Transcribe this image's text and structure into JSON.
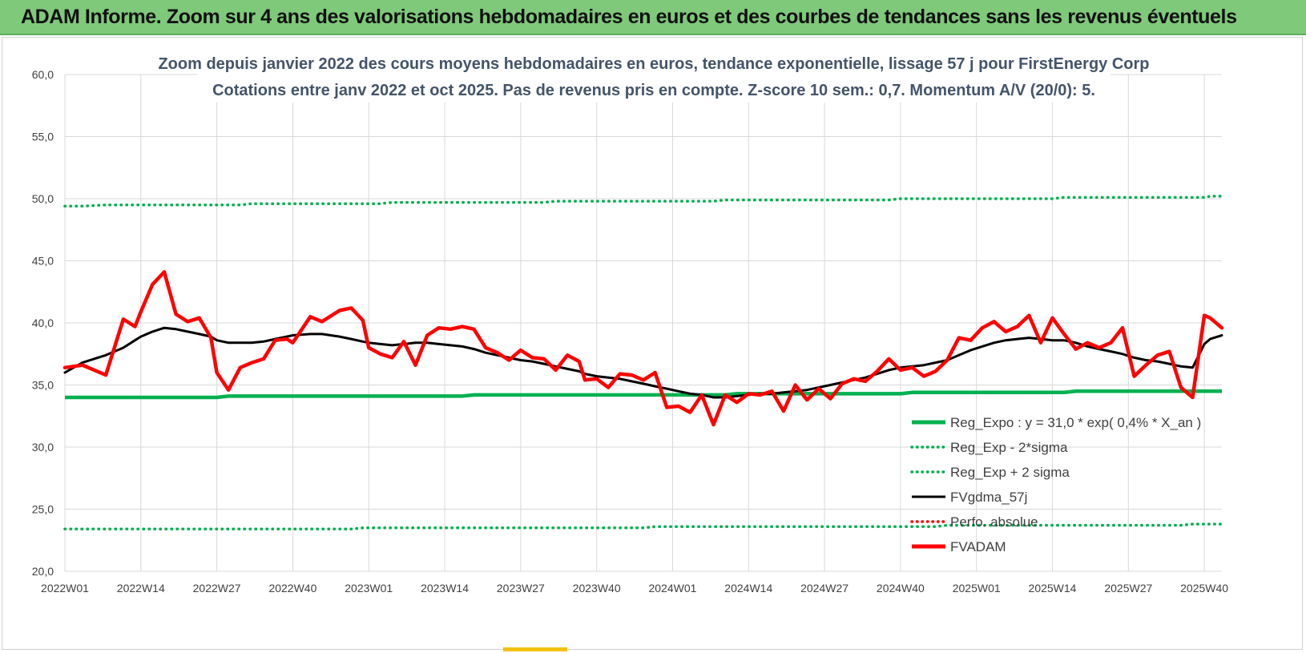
{
  "banner": {
    "title": "ADAM Informe. Zoom sur 4 ans des valorisations hebdomadaires en euros et des courbes de tendances sans les revenus éventuels"
  },
  "colors": {
    "banner_bg": "#7fc97a",
    "reg_expo": "#00b050",
    "fv_gdma": "#000000",
    "fvadam": "#ff0000",
    "perfo": "#ff0000",
    "grid": "#d9d9d9"
  },
  "chart_data": {
    "type": "line",
    "title": "Zoom depuis janvier 2022 des cours moyens hebdomadaires en euros, tendance exponentielle, lissage 57 j pour FirstEnergy Corp",
    "subtitle": "Cotations entre janv 2022 et oct 2025. Pas de revenus pris en compte. Z-score 10 sem.: 0,7. Momentum A/V (20/0): 5.",
    "xlabel": "",
    "ylabel": "",
    "ylim": [
      20,
      60
    ],
    "yticks": [
      "20,0",
      "25,0",
      "30,0",
      "35,0",
      "40,0",
      "45,0",
      "50,0",
      "55,0",
      "60,0"
    ],
    "xticks": [
      "2022W01",
      "2022W14",
      "2022W27",
      "2022W40",
      "2023W01",
      "2023W14",
      "2023W27",
      "2023W40",
      "2024W01",
      "2024W14",
      "2024W27",
      "2024W40",
      "2025W01",
      "2025W14",
      "2025W27",
      "2025W40"
    ],
    "grid": true,
    "legend_position": "bottom-right",
    "legend": [
      {
        "label": "Reg_Expo : y = 31,0 * exp( 0,4% * X_an )",
        "style": "solid-thick",
        "color": "#00b050"
      },
      {
        "label": "Reg_Exp - 2*sigma",
        "style": "dotted",
        "color": "#00b050"
      },
      {
        "label": "Reg_Exp + 2 sigma",
        "style": "dotted",
        "color": "#00b050"
      },
      {
        "label": "FVgdma_57j",
        "style": "solid",
        "color": "#000000"
      },
      {
        "label": "Perfo. absolue",
        "style": "dotted",
        "color": "#ff0000"
      },
      {
        "label": "FVADAM",
        "style": "solid-thick",
        "color": "#ff0000"
      }
    ],
    "x": [
      1,
      4,
      8,
      11,
      13,
      14,
      16,
      18,
      20,
      22,
      24,
      26,
      27,
      29,
      31,
      33,
      35,
      37,
      39,
      40,
      43,
      45,
      48,
      50,
      52,
      53,
      55,
      57,
      59,
      61,
      63,
      65,
      67,
      69,
      71,
      73,
      75,
      77,
      79,
      81,
      83,
      85,
      87,
      89,
      90,
      92,
      94,
      96,
      98,
      100,
      102,
      104,
      106,
      108,
      110,
      112,
      114,
      116,
      118,
      120,
      122,
      124,
      126,
      128,
      130,
      132,
      134,
      136,
      138,
      140,
      142,
      144,
      146,
      148,
      150,
      152,
      154,
      156,
      158,
      160,
      162,
      164,
      166,
      168,
      170,
      172,
      174,
      176,
      178,
      180,
      182,
      184,
      186,
      188,
      190,
      192,
      194,
      196,
      197,
      199
    ],
    "series": [
      {
        "name": "FVADAM",
        "values": [
          36.4,
          36.6,
          35.8,
          40.3,
          39.7,
          40.9,
          43.1,
          44.1,
          40.7,
          40.1,
          40.4,
          38.8,
          36.0,
          34.6,
          36.4,
          36.8,
          37.1,
          38.6,
          38.7,
          38.4,
          40.5,
          40.1,
          41.0,
          41.2,
          40.2,
          38.0,
          37.5,
          37.2,
          38.5,
          36.6,
          39.0,
          39.6,
          39.5,
          39.7,
          39.5,
          38.0,
          37.6,
          37.0,
          37.8,
          37.2,
          37.1,
          36.2,
          37.4,
          36.9,
          35.4,
          35.5,
          34.8,
          35.9,
          35.8,
          35.4,
          36.0,
          33.2,
          33.3,
          32.8,
          34.2,
          31.8,
          34.2,
          33.6,
          34.3,
          34.2,
          34.5,
          32.9,
          35.0,
          33.8,
          34.7,
          33.9,
          35.1,
          35.5,
          35.3,
          36.1,
          37.1,
          36.2,
          36.4,
          35.7,
          36.1,
          37.0,
          38.8,
          38.6,
          39.6,
          40.1,
          39.3,
          39.7,
          40.6,
          38.4,
          40.4,
          39.1,
          37.9,
          38.4,
          38.0,
          38.4,
          39.6,
          35.7,
          36.6,
          37.4,
          37.7,
          34.8,
          34.0,
          40.6,
          40.4,
          39.6
        ]
      },
      {
        "name": "FVgdma_57j",
        "values": [
          36.0,
          36.8,
          37.4,
          38.0,
          38.6,
          38.9,
          39.3,
          39.6,
          39.5,
          39.3,
          39.1,
          38.9,
          38.6,
          38.4,
          38.4,
          38.4,
          38.5,
          38.7,
          38.9,
          39.0,
          39.1,
          39.1,
          38.9,
          38.7,
          38.5,
          38.4,
          38.3,
          38.2,
          38.3,
          38.4,
          38.4,
          38.3,
          38.2,
          38.1,
          37.9,
          37.6,
          37.4,
          37.2,
          37.0,
          36.9,
          36.7,
          36.5,
          36.3,
          36.1,
          35.9,
          35.7,
          35.6,
          35.5,
          35.3,
          35.1,
          34.9,
          34.7,
          34.5,
          34.3,
          34.2,
          34.0,
          34.0,
          34.1,
          34.2,
          34.3,
          34.3,
          34.4,
          34.5,
          34.6,
          34.8,
          35.0,
          35.2,
          35.4,
          35.6,
          35.9,
          36.2,
          36.4,
          36.5,
          36.6,
          36.8,
          37.0,
          37.4,
          37.8,
          38.1,
          38.4,
          38.6,
          38.7,
          38.8,
          38.7,
          38.6,
          38.6,
          38.4,
          38.1,
          37.9,
          37.7,
          37.5,
          37.2,
          37.0,
          36.9,
          36.7,
          36.5,
          36.4,
          38.3,
          38.7,
          39.0
        ]
      },
      {
        "name": "Reg_Expo : y = 31,0 * exp( 0,4% * X_an )",
        "values": [
          34.0,
          34.0,
          34.0,
          34.0,
          34.0,
          34.0,
          34.0,
          34.0,
          34.0,
          34.0,
          34.0,
          34.0,
          34.0,
          34.1,
          34.1,
          34.1,
          34.1,
          34.1,
          34.1,
          34.1,
          34.1,
          34.1,
          34.1,
          34.1,
          34.1,
          34.1,
          34.1,
          34.1,
          34.1,
          34.1,
          34.1,
          34.1,
          34.1,
          34.1,
          34.2,
          34.2,
          34.2,
          34.2,
          34.2,
          34.2,
          34.2,
          34.2,
          34.2,
          34.2,
          34.2,
          34.2,
          34.2,
          34.2,
          34.2,
          34.2,
          34.2,
          34.2,
          34.2,
          34.2,
          34.2,
          34.2,
          34.2,
          34.3,
          34.3,
          34.3,
          34.3,
          34.3,
          34.3,
          34.3,
          34.3,
          34.3,
          34.3,
          34.3,
          34.3,
          34.3,
          34.3,
          34.3,
          34.4,
          34.4,
          34.4,
          34.4,
          34.4,
          34.4,
          34.4,
          34.4,
          34.4,
          34.4,
          34.4,
          34.4,
          34.4,
          34.4,
          34.5,
          34.5,
          34.5,
          34.5,
          34.5,
          34.5,
          34.5,
          34.5,
          34.5,
          34.5,
          34.5,
          34.5,
          34.5,
          34.5
        ]
      },
      {
        "name": "Reg_Exp - 2*sigma",
        "values": [
          23.4,
          23.4,
          23.4,
          23.4,
          23.4,
          23.4,
          23.4,
          23.4,
          23.4,
          23.4,
          23.4,
          23.4,
          23.4,
          23.4,
          23.4,
          23.4,
          23.4,
          23.4,
          23.4,
          23.4,
          23.4,
          23.4,
          23.4,
          23.4,
          23.5,
          23.5,
          23.5,
          23.5,
          23.5,
          23.5,
          23.5,
          23.5,
          23.5,
          23.5,
          23.5,
          23.5,
          23.5,
          23.5,
          23.5,
          23.5,
          23.5,
          23.5,
          23.5,
          23.5,
          23.5,
          23.5,
          23.5,
          23.5,
          23.5,
          23.5,
          23.6,
          23.6,
          23.6,
          23.6,
          23.6,
          23.6,
          23.6,
          23.6,
          23.6,
          23.6,
          23.6,
          23.6,
          23.6,
          23.6,
          23.6,
          23.6,
          23.6,
          23.6,
          23.6,
          23.6,
          23.6,
          23.6,
          23.6,
          23.6,
          23.6,
          23.7,
          23.7,
          23.7,
          23.7,
          23.7,
          23.7,
          23.7,
          23.7,
          23.7,
          23.7,
          23.7,
          23.7,
          23.7,
          23.7,
          23.7,
          23.7,
          23.7,
          23.7,
          23.7,
          23.7,
          23.7,
          23.8,
          23.8,
          23.8,
          23.8
        ]
      },
      {
        "name": "Reg_Exp + 2 sigma",
        "values": [
          49.4,
          49.4,
          49.5,
          49.5,
          49.5,
          49.5,
          49.5,
          49.5,
          49.5,
          49.5,
          49.5,
          49.5,
          49.5,
          49.5,
          49.5,
          49.6,
          49.6,
          49.6,
          49.6,
          49.6,
          49.6,
          49.6,
          49.6,
          49.6,
          49.6,
          49.6,
          49.6,
          49.7,
          49.7,
          49.7,
          49.7,
          49.7,
          49.7,
          49.7,
          49.7,
          49.7,
          49.7,
          49.7,
          49.7,
          49.7,
          49.7,
          49.8,
          49.8,
          49.8,
          49.8,
          49.8,
          49.8,
          49.8,
          49.8,
          49.8,
          49.8,
          49.8,
          49.8,
          49.8,
          49.8,
          49.8,
          49.9,
          49.9,
          49.9,
          49.9,
          49.9,
          49.9,
          49.9,
          49.9,
          49.9,
          49.9,
          49.9,
          49.9,
          49.9,
          49.9,
          49.9,
          50.0,
          50.0,
          50.0,
          50.0,
          50.0,
          50.0,
          50.0,
          50.0,
          50.0,
          50.0,
          50.0,
          50.0,
          50.0,
          50.0,
          50.1,
          50.1,
          50.1,
          50.1,
          50.1,
          50.1,
          50.1,
          50.1,
          50.1,
          50.1,
          50.1,
          50.1,
          50.1,
          50.2,
          50.2
        ]
      }
    ]
  }
}
